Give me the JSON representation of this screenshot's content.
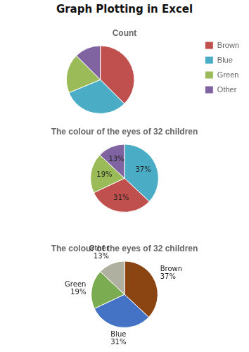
{
  "chart_data": [
    {
      "type": "pie",
      "title": "Count",
      "annotations": [
        "Graph Plotting in Excel"
      ],
      "categories": [
        "Brown",
        "Blue",
        "Green",
        "Other"
      ],
      "values": [
        12,
        10,
        6,
        4
      ],
      "colors": [
        "#c0504d",
        "#4bacc6",
        "#9bbb59",
        "#8064a2"
      ],
      "legend": "right"
    },
    {
      "type": "pie",
      "title": "The colour of the eyes of 32 children",
      "categories": [
        null,
        null,
        null,
        null
      ],
      "values": [
        37,
        31,
        19,
        13
      ],
      "value_labels": [
        "37%",
        "31%",
        "19%",
        "13%"
      ],
      "data_labels": true,
      "colors": [
        "#4bacc6",
        "#c0504d",
        "#9bbb59",
        "#8064a2"
      ]
    },
    {
      "type": "pie",
      "title": "The colour of the eyes of 32 children",
      "categories": [
        "Brown",
        "Blue",
        "Green",
        "Other"
      ],
      "values": [
        37,
        31,
        19,
        13
      ],
      "value_labels": [
        "37%",
        "31%",
        "19%",
        "13%"
      ],
      "data_labels": true,
      "colors": [
        "#8B4513",
        "#4472c4",
        "#7cac52",
        "#b0b0a0"
      ]
    }
  ]
}
